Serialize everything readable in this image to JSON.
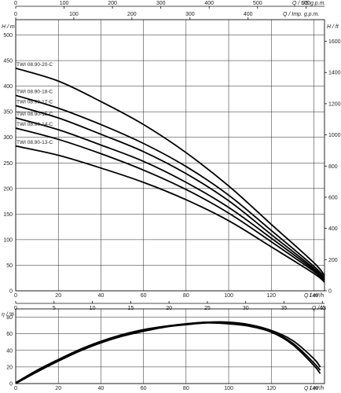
{
  "chart_data": [
    {
      "type": "line",
      "title": "",
      "xlabel": "Q / m³/h",
      "ylabel": "H / m",
      "xlim": [
        0,
        145
      ],
      "ylim": [
        0,
        530
      ],
      "x_ticks": [
        0,
        20,
        40,
        60,
        80,
        100,
        120,
        140
      ],
      "y_ticks": [
        0,
        50,
        100,
        150,
        200,
        250,
        300,
        350,
        400,
        450,
        500
      ],
      "secondary_axes": {
        "top_us_gpm": {
          "label": "Q / US g.p.m.",
          "ticks": [
            0,
            100,
            200,
            300,
            400,
            500,
            600
          ]
        },
        "top_imp_gpm": {
          "label": "Q / Imp. g.p.m.",
          "ticks": [
            0,
            100,
            200,
            300,
            400
          ]
        },
        "right_ft": {
          "label": "H / ft",
          "ticks": [
            0,
            200,
            400,
            600,
            800,
            1000,
            1200,
            1400,
            1600
          ]
        },
        "bottom_ls": {
          "label": "Q / l/s",
          "ticks": [
            0,
            5,
            10,
            15,
            20,
            25,
            30,
            35,
            40
          ]
        }
      },
      "grid": true,
      "series": [
        {
          "name": "TWI 08.90-20-C",
          "x": [
            0,
            20,
            40,
            60,
            80,
            100,
            120,
            140,
            145
          ],
          "y": [
            435,
            410,
            370,
            325,
            270,
            205,
            130,
            55,
            30
          ]
        },
        {
          "name": "TWI 08.90-18-C",
          "x": [
            0,
            20,
            40,
            60,
            80,
            100,
            120,
            140,
            145
          ],
          "y": [
            382,
            357,
            325,
            288,
            243,
            187,
            118,
            48,
            26
          ]
        },
        {
          "name": "TWI 08.90-17-C",
          "x": [
            0,
            20,
            40,
            60,
            80,
            100,
            120,
            140,
            145
          ],
          "y": [
            362,
            338,
            306,
            272,
            229,
            176,
            110,
            44,
            23
          ]
        },
        {
          "name": "TWI 08.90-15-C",
          "x": [
            0,
            20,
            40,
            60,
            80,
            100,
            120,
            140,
            145
          ],
          "y": [
            338,
            315,
            285,
            253,
            212,
            163,
            103,
            41,
            21
          ]
        },
        {
          "name": "TWI 08.90-14-C",
          "x": [
            0,
            20,
            40,
            60,
            80,
            100,
            120,
            140,
            145
          ],
          "y": [
            318,
            296,
            268,
            236,
            198,
            152,
            96,
            38,
            19
          ]
        },
        {
          "name": "TWI 08.90-13-C",
          "x": [
            0,
            20,
            40,
            60,
            80,
            100,
            120,
            140,
            145
          ],
          "y": [
            283,
            265,
            240,
            212,
            178,
            137,
            86,
            34,
            17
          ]
        }
      ]
    },
    {
      "type": "line",
      "title": "",
      "xlabel": "Q / m³/h",
      "ylabel": "η / %",
      "xlim": [
        0,
        145
      ],
      "ylim": [
        0,
        90
      ],
      "x_ticks": [
        0,
        20,
        40,
        60,
        80,
        100,
        120,
        140
      ],
      "y_ticks": [
        0,
        20,
        40,
        60,
        80
      ],
      "grid": true,
      "series": [
        {
          "x": [
            0,
            10,
            20,
            30,
            40,
            50,
            60,
            70,
            80,
            90,
            100,
            110,
            120,
            130,
            140,
            143
          ],
          "y": [
            0,
            14,
            27,
            39,
            49,
            57,
            63,
            68,
            71,
            73,
            72,
            69,
            62,
            47,
            22,
            12
          ]
        },
        {
          "x": [
            0,
            10,
            20,
            30,
            40,
            50,
            60,
            70,
            80,
            90,
            100,
            110,
            120,
            130,
            140,
            143
          ],
          "y": [
            1,
            15,
            28,
            40,
            50,
            58,
            64,
            69,
            72,
            74,
            73,
            70,
            63,
            49,
            25,
            16
          ]
        },
        {
          "x": [
            0,
            10,
            20,
            30,
            40,
            50,
            60,
            70,
            80,
            90,
            100,
            110,
            120,
            130,
            140,
            143
          ],
          "y": [
            1,
            16,
            29,
            41,
            51,
            59,
            65,
            69,
            72,
            74,
            74,
            71,
            64,
            52,
            30,
            20
          ]
        }
      ]
    }
  ]
}
